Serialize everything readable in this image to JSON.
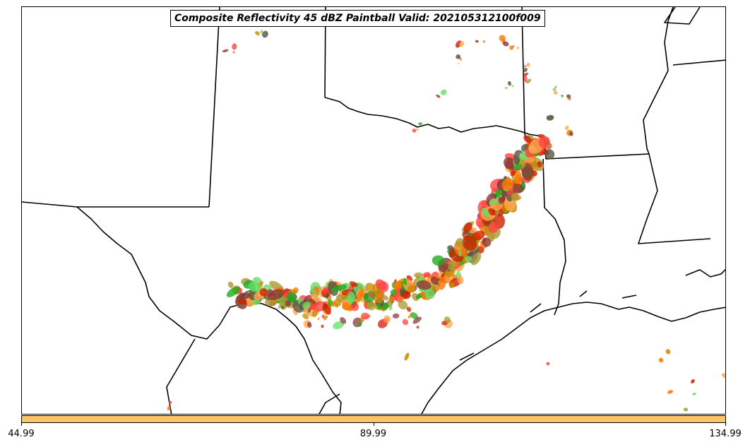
{
  "title": "Composite Reflectivity 45 dBZ Paintball Valid: 202105312100f009",
  "colorbar": {
    "color": "#ffc266",
    "ticks": [
      {
        "label": "44.99",
        "value": 44.99
      },
      {
        "label": "89.99",
        "value": 89.99
      },
      {
        "label": "134.99",
        "value": 134.99
      }
    ],
    "min": 44.99,
    "max": 134.99
  },
  "map": {
    "region": "Southern Plains / Texas",
    "boundary_color": "#000000",
    "paintball_colors": [
      "#cc2200",
      "#ff7700",
      "#ffa64d",
      "#22aa22",
      "#66dd66",
      "#8b3a3a",
      "#555544",
      "#aa9933",
      "#ff4444",
      "#cc8800"
    ]
  }
}
